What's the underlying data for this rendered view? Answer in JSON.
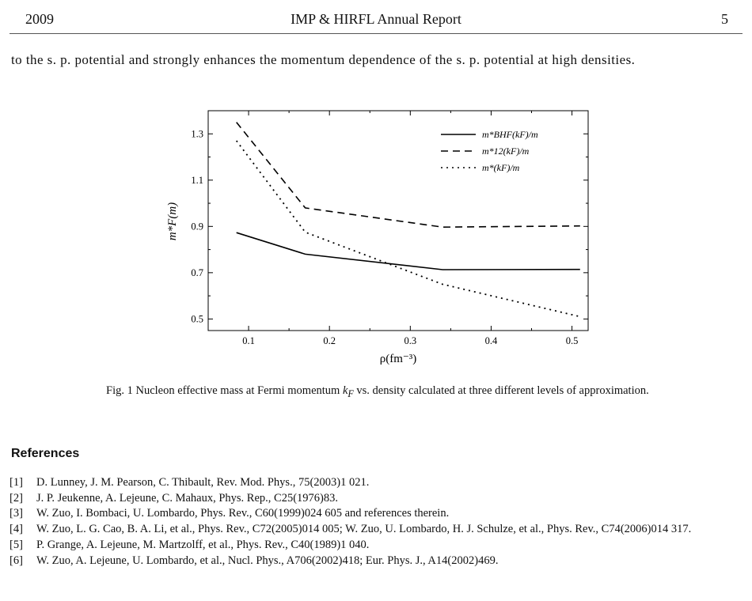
{
  "header": {
    "year": "2009",
    "title": "IMP & HIRFL Annual Report",
    "page_number": "5"
  },
  "intro_text": "to the s. p. potential and strongly enhances the momentum dependence of the s. p. potential at high densities.",
  "figure": {
    "caption_prefix": "Fig. 1",
    "caption_part1": "Nucleon effective mass at Fermi momentum ",
    "caption_symbol": "k",
    "caption_symbol_sub": "F",
    "caption_part2": " vs. density calculated at three different levels of approximation."
  },
  "chart_data": {
    "type": "line",
    "xlabel": "ρ(fm⁻³)",
    "ylabel": "m*F(m)",
    "xlim": [
      0.05,
      0.52
    ],
    "ylim": [
      0.45,
      1.4
    ],
    "xticks": [
      0.1,
      0.2,
      0.3,
      0.4,
      0.5
    ],
    "xtick_labels": [
      "0.1",
      "0.2",
      "0.3",
      "0.4",
      "0.5"
    ],
    "yticks": [
      0.5,
      0.7,
      0.9,
      1.1,
      1.3
    ],
    "ytick_labels": [
      "0.5",
      "0.7",
      "0.9",
      "1.1",
      "1.3"
    ],
    "grid": false,
    "legend_position": "top-right",
    "series": [
      {
        "name": "m*BHF(kF)/m",
        "style": "solid",
        "x": [
          0.085,
          0.17,
          0.34,
          0.51
        ],
        "y": [
          0.873,
          0.78,
          0.713,
          0.714
        ]
      },
      {
        "name": "m*12(kF)/m",
        "style": "dashed",
        "x": [
          0.085,
          0.17,
          0.34,
          0.51
        ],
        "y": [
          1.35,
          0.98,
          0.897,
          0.902
        ]
      },
      {
        "name": "m*(kF)/m",
        "style": "dotted",
        "x": [
          0.085,
          0.17,
          0.34,
          0.51
        ],
        "y": [
          1.27,
          0.875,
          0.65,
          0.51
        ]
      }
    ]
  },
  "references": {
    "title": "References",
    "items": [
      {
        "num": "[1]",
        "text": "D. Lunney, J. M. Pearson, C. Thibault, Rev. Mod. Phys., 75(2003)1 021."
      },
      {
        "num": "[2]",
        "text": "J. P. Jeukenne, A. Lejeune, C. Mahaux, Phys. Rep., C25(1976)83."
      },
      {
        "num": "[3]",
        "text": "W. Zuo, I. Bombaci, U. Lombardo, Phys. Rev., C60(1999)024 605 and references therein."
      },
      {
        "num": "[4]",
        "text": "W. Zuo, L. G. Cao, B. A. Li, et al., Phys. Rev., C72(2005)014 005; W. Zuo, U. Lombardo, H. J. Schulze, et al., Phys. Rev., C74(2006)014 317."
      },
      {
        "num": "[5]",
        "text": "P. Grange, A. Lejeune, M. Martzolff, et al., Phys. Rev., C40(1989)1 040."
      },
      {
        "num": "[6]",
        "text": "W. Zuo, A. Lejeune, U. Lombardo, et al., Nucl. Phys., A706(2002)418; Eur. Phys. J., A14(2002)469."
      }
    ]
  }
}
